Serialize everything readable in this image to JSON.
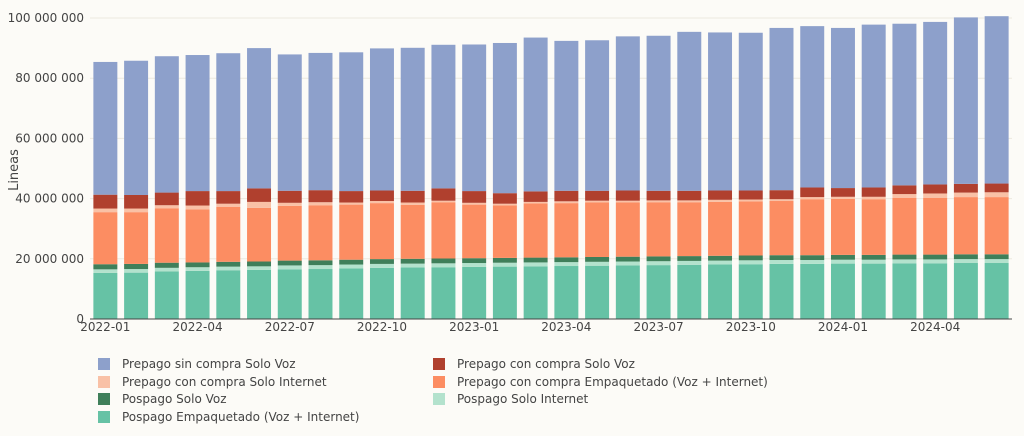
{
  "chart_data": {
    "type": "bar",
    "stacked": true,
    "title": "",
    "xlabel": "",
    "ylabel": "Lineas",
    "ylim": [
      0,
      100000000
    ],
    "yticks": [
      0,
      20000000,
      40000000,
      60000000,
      80000000,
      100000000
    ],
    "ytick_labels": [
      "0",
      "20 000 000",
      "40 000 000",
      "60 000 000",
      "80 000 000",
      "100 000 000"
    ],
    "xtick_labels": [
      "2022-01",
      "2022-04",
      "2022-07",
      "2022-10",
      "2023-01",
      "2023-04",
      "2023-07",
      "2023-10",
      "2024-01",
      "2024-04"
    ],
    "xtick_positions": [
      0,
      3,
      6,
      9,
      12,
      15,
      18,
      21,
      24,
      27
    ],
    "categories": [
      "2022-01",
      "2022-02",
      "2022-03",
      "2022-04",
      "2022-05",
      "2022-06",
      "2022-07",
      "2022-08",
      "2022-09",
      "2022-10",
      "2022-11",
      "2022-12",
      "2023-01",
      "2023-02",
      "2023-03",
      "2023-04",
      "2023-05",
      "2023-06",
      "2023-07",
      "2023-08",
      "2023-09",
      "2023-10",
      "2023-11",
      "2023-12",
      "2024-01",
      "2024-02",
      "2024-03",
      "2024-04",
      "2024-05",
      "2024-06"
    ],
    "grid": true,
    "legend_position": "bottom",
    "series": [
      {
        "name": "Pospago Empaquetado (Voz + Internet)",
        "color": "#66c2a5",
        "values": [
          15.3,
          15.4,
          15.8,
          16.0,
          16.2,
          16.3,
          16.5,
          16.6,
          16.8,
          17.0,
          17.1,
          17.2,
          17.3,
          17.4,
          17.5,
          17.6,
          17.7,
          17.8,
          17.9,
          18.0,
          18.1,
          18.2,
          18.3,
          18.3,
          18.4,
          18.4,
          18.5,
          18.5,
          18.6,
          18.6
        ]
      },
      {
        "name": "Pospago Solo Internet",
        "color": "#b3e2cd",
        "values": [
          1.2,
          1.2,
          1.2,
          1.2,
          1.2,
          1.2,
          1.3,
          1.3,
          1.3,
          1.3,
          1.3,
          1.3,
          1.3,
          1.3,
          1.3,
          1.3,
          1.3,
          1.3,
          1.3,
          1.3,
          1.3,
          1.3,
          1.3,
          1.3,
          1.3,
          1.3,
          1.3,
          1.3,
          1.3,
          1.3
        ]
      },
      {
        "name": "Pospago Solo Voz",
        "color": "#3f7f5a",
        "values": [
          1.7,
          1.7,
          1.7,
          1.6,
          1.6,
          1.6,
          1.6,
          1.6,
          1.6,
          1.6,
          1.6,
          1.6,
          1.6,
          1.6,
          1.6,
          1.6,
          1.6,
          1.6,
          1.6,
          1.6,
          1.6,
          1.6,
          1.6,
          1.6,
          1.6,
          1.6,
          1.6,
          1.6,
          1.6,
          1.6
        ]
      },
      {
        "name": "Prepago con compra Empaquetado (Voz + Internet)",
        "color": "#fc8d62",
        "values": [
          17.3,
          17.2,
          18.1,
          17.6,
          18.3,
          17.8,
          18.2,
          18.3,
          18.3,
          18.6,
          17.9,
          18.7,
          17.8,
          17.4,
          18.0,
          18.0,
          18.1,
          18.0,
          18.0,
          17.9,
          17.9,
          18.0,
          18.0,
          18.6,
          18.6,
          18.5,
          18.8,
          18.8,
          19.0,
          19.0
        ]
      },
      {
        "name": "Prepago con compra Solo Internet",
        "color": "#f9c1a6",
        "values": [
          1.2,
          1.2,
          1.0,
          1.3,
          1.0,
          2.0,
          1.0,
          1.0,
          0.7,
          0.7,
          0.8,
          0.5,
          0.6,
          0.6,
          0.5,
          0.6,
          0.6,
          0.6,
          0.6,
          0.6,
          0.7,
          0.6,
          0.6,
          0.7,
          0.7,
          0.8,
          1.3,
          1.5,
          1.5,
          1.6
        ]
      },
      {
        "name": "Prepago con compra Solo Voz",
        "color": "#b0402e",
        "values": [
          4.6,
          4.5,
          4.2,
          4.8,
          4.2,
          4.5,
          4.0,
          4.0,
          3.8,
          3.5,
          3.9,
          4.1,
          3.9,
          3.5,
          3.5,
          3.5,
          3.3,
          3.4,
          3.2,
          3.2,
          3.1,
          3.0,
          3.0,
          3.2,
          2.9,
          3.1,
          2.9,
          3.0,
          2.9,
          2.9
        ]
      },
      {
        "name": "Prepago sin compra Solo Voz",
        "color": "#8da0cb",
        "values": [
          44.1,
          44.6,
          45.3,
          45.2,
          45.8,
          46.6,
          45.3,
          45.6,
          46.1,
          47.2,
          47.5,
          47.7,
          48.7,
          49.9,
          51.1,
          49.8,
          50.0,
          51.2,
          51.5,
          52.8,
          52.5,
          52.4,
          53.9,
          53.6,
          53.2,
          54.1,
          53.7,
          54.0,
          55.3,
          55.6
        ]
      }
    ],
    "units_multiplier": 1000000
  },
  "legend": {
    "items": [
      {
        "label": "Prepago sin compra Solo Voz",
        "color": "#8da0cb"
      },
      {
        "label": "Prepago con compra Solo Voz",
        "color": "#b0402e"
      },
      {
        "label": "Prepago con compra Solo Internet",
        "color": "#f9c1a6"
      },
      {
        "label": "Prepago con compra Empaquetado (Voz + Internet)",
        "color": "#fc8d62"
      },
      {
        "label": "Pospago Solo Voz",
        "color": "#3f7f5a"
      },
      {
        "label": "Pospago Solo Internet",
        "color": "#b3e2cd"
      },
      {
        "label": "Pospago Empaquetado (Voz + Internet)",
        "color": "#66c2a5"
      }
    ]
  }
}
